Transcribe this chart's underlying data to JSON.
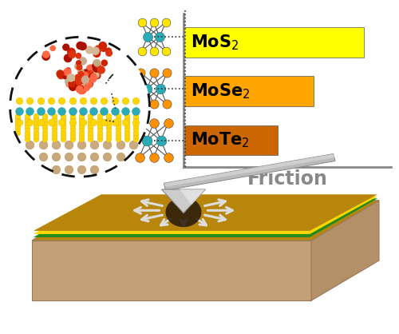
{
  "background_color": "#ffffff",
  "fig_width": 5.0,
  "fig_height": 4.18,
  "dpi": 100,
  "bars": [
    {
      "label": "MoS$_2$",
      "value": 1.0,
      "color": "#FFFF00"
    },
    {
      "label": "MoSe$_2$",
      "value": 0.72,
      "color": "#FFA500"
    },
    {
      "label": "MoTe$_2$",
      "value": 0.52,
      "color": "#CC6600"
    }
  ],
  "xlabel": "Friction",
  "xlabel_color": "#888888",
  "axis_color": "#888888",
  "label_fontsize": 15,
  "xlabel_fontsize": 17,
  "mol_S_color": "#FFE500",
  "mol_Se_color": "#FF9500",
  "mol_Te_color": "#FF9000",
  "mol_Mo_color": "#2AACB8",
  "substrate_top_color": "#B8860B",
  "substrate_green_color": "#228B22",
  "substrate_yellow_color": "#FFD700",
  "substrate_body_color": "#D4B496",
  "substrate_front_color": "#C4A078",
  "substrate_side_color": "#B49068",
  "tip_color": "#CCCCCC",
  "cantilever_color": "#BBBBBB",
  "arrow_color": "#DDDDDD",
  "contact_color": "#2A1A0A",
  "inset_circle_color": "#111111",
  "inset_substrate_color": "#D4B896",
  "inset_teal_color": "#2AACB8",
  "inset_yellow_color": "#FFD700",
  "inset_red_color": "#CC2200",
  "inset_beige_color": "#D4C0A0"
}
